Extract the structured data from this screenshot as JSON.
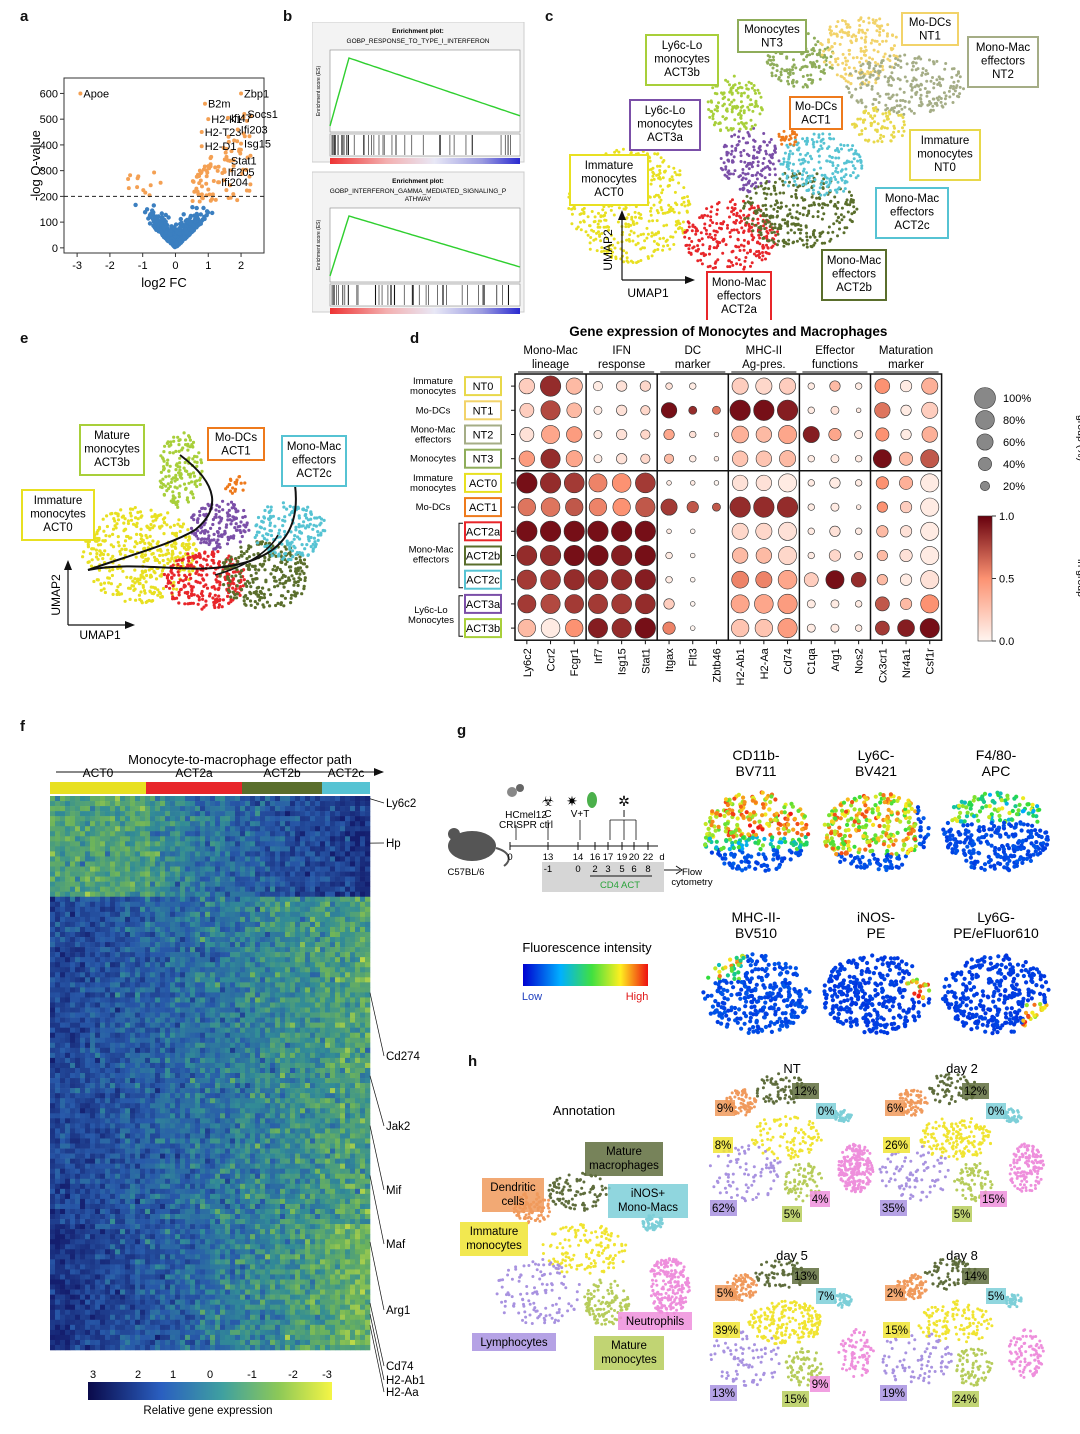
{
  "panels": {
    "a": "a",
    "b": "b",
    "c": "c",
    "d": "d",
    "e": "e",
    "f": "f",
    "g": "g",
    "h": "h"
  },
  "chart_data": [
    {
      "type": "scatter",
      "panel": "a",
      "xlabel": "log2 FC",
      "ylabel": "-log Q-value",
      "xticks": [
        "-3",
        "-2",
        "-1",
        "0",
        "1",
        "2"
      ],
      "yticks": [
        "0",
        "100",
        "200",
        "300",
        "400",
        "500",
        "600"
      ],
      "xlim": [
        -3.4,
        2.7
      ],
      "ylim": [
        -20,
        660
      ],
      "threshold_y": 200,
      "colors": {
        "up": "#f4a053",
        "base": "#3b7fc0"
      },
      "labeled_points": [
        {
          "label": "Apoe",
          "x": -2.9,
          "y": 600
        },
        {
          "label": "B2m",
          "x": 0.9,
          "y": 560
        },
        {
          "label": "Zbp1",
          "x": 2.0,
          "y": 600
        },
        {
          "label": "Socs1",
          "x": 2.1,
          "y": 520
        },
        {
          "label": "H2-K1",
          "x": 1.0,
          "y": 500
        },
        {
          "label": "Ifi47",
          "x": 1.6,
          "y": 505
        },
        {
          "label": "H2-T23",
          "x": 0.8,
          "y": 450
        },
        {
          "label": "Ifi203",
          "x": 1.9,
          "y": 460
        },
        {
          "label": "Isg15",
          "x": 2.0,
          "y": 405
        },
        {
          "label": "H2-D1",
          "x": 0.8,
          "y": 395
        },
        {
          "label": "Stat1",
          "x": 1.6,
          "y": 340
        },
        {
          "label": "Ifi205",
          "x": 1.5,
          "y": 295
        },
        {
          "label": "Ifi204",
          "x": 1.3,
          "y": 255
        }
      ]
    },
    {
      "type": "line",
      "panel": "b",
      "plots": [
        {
          "title": "Enrichment plot:",
          "subtitle": "GOBP_RESPONSE_TO_TYPE_I_INTERFERON"
        },
        {
          "title": "Enrichment plot:",
          "subtitle": "GOBP_INTERFERON_GAMMA_MEDIATED_SIGNALING_P ATHWAY"
        }
      ],
      "color": "#2fcf2f"
    },
    {
      "type": "scatter",
      "panel": "c",
      "xlabel": "UMAP1",
      "ylabel": "UMAP2",
      "clusters": [
        {
          "label": [
            "Immature",
            "monocytes",
            "ACT0"
          ],
          "color": "#e8e021"
        },
        {
          "label": [
            "Mono-Mac",
            "effectors",
            "ACT2a"
          ],
          "color": "#e8262a"
        },
        {
          "label": [
            "Mono-Mac",
            "effectors",
            "ACT2b"
          ],
          "color": "#5a6e2c"
        },
        {
          "label": [
            "Mono-Mac",
            "effectors",
            "ACT2c"
          ],
          "color": "#56c3d3"
        },
        {
          "label": [
            "Ly6c-Lo",
            "monocytes",
            "ACT3a"
          ],
          "color": "#7b4fa8"
        },
        {
          "label": [
            "Ly6c-Lo",
            "monocytes",
            "ACT3b"
          ],
          "color": "#a8cf3a"
        },
        {
          "label": [
            "Mo-DCs",
            "ACT1"
          ],
          "color": "#ee7a1c"
        },
        {
          "label": [
            "Monocytes",
            "NT3"
          ],
          "color": "#8fad5a"
        },
        {
          "label": [
            "Mo-DCs",
            "NT1"
          ],
          "color": "#f2d36a"
        },
        {
          "label": [
            "Mono-Mac",
            "effectors",
            "NT2"
          ],
          "color": "#a5ad86"
        },
        {
          "label": [
            "Immature",
            "monocytes",
            "NT0"
          ],
          "color": "#e8d84a"
        }
      ]
    },
    {
      "type": "scatter",
      "panel": "d",
      "title": "Gene expression of Monocytes and Macrophages",
      "groups": [
        {
          "label": [
            "Mono-Mac",
            "lineage"
          ],
          "genes": [
            "Ly6c2",
            "Ccr2",
            "Fcgr1"
          ]
        },
        {
          "label": [
            "IFN",
            "response"
          ],
          "genes": [
            "Irf7",
            "Isg15",
            "Stat1"
          ]
        },
        {
          "label": [
            "DC",
            "marker"
          ],
          "genes": [
            "Itgax",
            "Flt3",
            "Zbtb46"
          ]
        },
        {
          "label": [
            "MHC-II",
            "Ag-pres."
          ],
          "genes": [
            "H2-Ab1",
            "H2-Aa",
            "Cd74"
          ]
        },
        {
          "label": [
            "Effector",
            "functions"
          ],
          "genes": [
            "C1qa",
            "Arg1",
            "Nos2"
          ]
        },
        {
          "label": [
            "Maturation",
            "marker"
          ],
          "genes": [
            "Cx3cr1",
            "Nr4a1",
            "Csf1r"
          ]
        }
      ],
      "rows": [
        {
          "id": "NT0",
          "desc": [
            "Immature",
            "monocytes"
          ],
          "color": "#e8d84a"
        },
        {
          "id": "NT1",
          "desc": [
            "Mo-DCs"
          ],
          "color": "#f2d36a"
        },
        {
          "id": "NT2",
          "desc": [
            "Mono-Mac",
            "effectors"
          ],
          "color": "#a5ad86"
        },
        {
          "id": "NT3",
          "desc": [
            "Monocytes"
          ],
          "color": "#8fad5a"
        },
        {
          "id": "ACT0",
          "desc": [
            "Immature",
            "monocytes"
          ],
          "color": "#e8e021"
        },
        {
          "id": "ACT1",
          "desc": [
            "Mo-DCs"
          ],
          "color": "#ee7a1c"
        },
        {
          "id": "ACT2a",
          "desc": [],
          "color": "#e8262a"
        },
        {
          "id": "ACT2b",
          "desc": [],
          "color": "#5a6e2c"
        },
        {
          "id": "ACT2c",
          "desc": [],
          "color": "#56c3d3"
        },
        {
          "id": "ACT3a",
          "desc": [],
          "color": "#7b4fa8"
        },
        {
          "id": "ACT3b",
          "desc": [],
          "color": "#a8cf3a"
        }
      ],
      "bracket_labels": [
        {
          "text": [
            "Mono-Mac",
            "effectors"
          ],
          "rows": [
            "ACT2a",
            "ACT2c"
          ]
        },
        {
          "text": [
            "Ly6c-Lo",
            "Monocytes"
          ],
          "rows": [
            "ACT3a",
            "ACT3b"
          ]
        }
      ],
      "fraction": [
        [
          0.55,
          0.95,
          0.6,
          0.2,
          0.25,
          0.25,
          0.1,
          0.1,
          0,
          0.6,
          0.6,
          0.6,
          0.1,
          0.25,
          0.1,
          0.5,
          0.3,
          0.6
        ],
        [
          0.45,
          0.85,
          0.5,
          0.15,
          0.25,
          0.2,
          0.55,
          0.15,
          0.15,
          0.95,
          0.95,
          0.95,
          0.1,
          0.15,
          0.05,
          0.55,
          0.25,
          0.6
        ],
        [
          0.45,
          0.75,
          0.55,
          0.15,
          0.25,
          0.2,
          0.25,
          0.1,
          0.05,
          0.65,
          0.55,
          0.75,
          0.6,
          0.35,
          0.15,
          0.4,
          0.25,
          0.55
        ],
        [
          0.55,
          0.85,
          0.6,
          0.15,
          0.25,
          0.2,
          0.2,
          0.1,
          0.05,
          0.55,
          0.55,
          0.6,
          0.1,
          0.15,
          0.1,
          0.75,
          0.4,
          0.75
        ],
        [
          0.95,
          0.95,
          0.9,
          0.75,
          0.8,
          0.9,
          0.05,
          0.05,
          0.05,
          0.55,
          0.55,
          0.75,
          0.1,
          0.25,
          0.1,
          0.35,
          0.4,
          0.75
        ],
        [
          0.7,
          0.8,
          0.7,
          0.7,
          0.7,
          0.85,
          0.6,
          0.3,
          0.15,
          0.95,
          0.95,
          0.95,
          0.1,
          0.15,
          0.05,
          0.25,
          0.3,
          0.75
        ],
        [
          0.95,
          0.95,
          0.95,
          0.95,
          0.95,
          0.95,
          0.05,
          0.05,
          0,
          0.6,
          0.6,
          0.75,
          0.1,
          0.25,
          0.1,
          0.3,
          0.3,
          0.75
        ],
        [
          0.9,
          0.95,
          0.95,
          0.95,
          0.95,
          0.95,
          0.1,
          0.05,
          0,
          0.55,
          0.55,
          0.75,
          0.1,
          0.3,
          0.15,
          0.25,
          0.35,
          0.75
        ],
        [
          0.85,
          0.9,
          0.95,
          0.9,
          0.95,
          0.95,
          0.1,
          0.05,
          0,
          0.65,
          0.6,
          0.8,
          0.45,
          0.75,
          0.5,
          0.25,
          0.3,
          0.75
        ],
        [
          0.75,
          0.85,
          0.8,
          0.85,
          0.9,
          0.9,
          0.25,
          0.05,
          0,
          0.75,
          0.8,
          0.85,
          0.15,
          0.15,
          0.1,
          0.45,
          0.3,
          0.75
        ],
        [
          0.7,
          0.8,
          0.7,
          0.85,
          0.85,
          0.95,
          0.35,
          0.05,
          0,
          0.7,
          0.7,
          0.85,
          0.15,
          0.15,
          0.1,
          0.45,
          0.65,
          0.85
        ]
      ],
      "expression": [
        [
          0.2,
          0.85,
          0.3,
          0.05,
          0.1,
          0.15,
          0.1,
          0.05,
          0,
          0.2,
          0.15,
          0.2,
          0.05,
          0.3,
          0.05,
          0.5,
          0.05,
          0.35
        ],
        [
          0.2,
          0.75,
          0.3,
          0.05,
          0.1,
          0.15,
          0.95,
          0.85,
          0.6,
          0.95,
          0.95,
          0.9,
          0.05,
          0.1,
          0.05,
          0.6,
          0.05,
          0.2
        ],
        [
          0.1,
          0.4,
          0.45,
          0.05,
          0.1,
          0.15,
          0.4,
          0.1,
          0.05,
          0.35,
          0.3,
          0.4,
          0.9,
          0.4,
          0.05,
          0.5,
          0.05,
          0.35
        ],
        [
          0.45,
          0.85,
          0.4,
          0.05,
          0.1,
          0.15,
          0.3,
          0.05,
          0.05,
          0.25,
          0.25,
          0.3,
          0.05,
          0.05,
          0.05,
          0.95,
          0.3,
          0.7
        ],
        [
          0.95,
          0.85,
          0.8,
          0.55,
          0.5,
          0.8,
          0.05,
          0.05,
          0,
          0.1,
          0.1,
          0.05,
          0.05,
          0.05,
          0.05,
          0.5,
          0.35,
          0.05
        ],
        [
          0.6,
          0.6,
          0.7,
          0.55,
          0.5,
          0.7,
          0.8,
          0.7,
          0.7,
          0.85,
          0.85,
          0.85,
          0.05,
          0.05,
          0.05,
          0.5,
          0.2,
          0.05
        ],
        [
          0.95,
          0.95,
          0.95,
          0.95,
          0.95,
          0.95,
          0.05,
          0,
          0,
          0.15,
          0.15,
          0.1,
          0.05,
          0.1,
          0.05,
          0.3,
          0.1,
          0.05
        ],
        [
          0.85,
          0.85,
          0.95,
          0.95,
          0.9,
          0.95,
          0.05,
          0,
          0,
          0.3,
          0.3,
          0.15,
          0.05,
          0.15,
          0.1,
          0.3,
          0.1,
          0.05
        ],
        [
          0.8,
          0.8,
          0.85,
          0.85,
          0.85,
          0.9,
          0.05,
          0,
          0,
          0.55,
          0.55,
          0.4,
          0.2,
          0.95,
          0.85,
          0.3,
          0.05,
          0.1
        ],
        [
          0.8,
          0.75,
          0.8,
          0.8,
          0.8,
          0.85,
          0.2,
          0,
          0,
          0.4,
          0.4,
          0.45,
          0.05,
          0.05,
          0.05,
          0.7,
          0.3,
          0.5
        ],
        [
          0.3,
          0.05,
          0.5,
          0.9,
          0.85,
          0.95,
          0.55,
          0,
          0,
          0.25,
          0.25,
          0.45,
          0.05,
          0.05,
          0.05,
          0.8,
          0.9,
          0.95
        ]
      ],
      "size_legend": {
        "title": "Fraction of cells in group (%)",
        "labels": [
          "100%",
          "80%",
          "60%",
          "40%",
          "20%"
        ],
        "values": [
          1.0,
          0.8,
          0.6,
          0.4,
          0.2
        ]
      },
      "color_legend": {
        "title": "Mean expression in group",
        "ticks": [
          "1.0",
          "0.5",
          "0.0"
        ],
        "colors": [
          "#fff5f0",
          "#67000d"
        ]
      }
    },
    {
      "type": "scatter",
      "panel": "e",
      "xlabel": "UMAP1",
      "ylabel": "UMAP2",
      "labels": [
        {
          "text": [
            "Mature",
            "monocytes",
            "ACT3b"
          ],
          "color": "#a8cf3a"
        },
        {
          "text": [
            "Mo-DCs",
            "ACT1"
          ],
          "color": "#ee7a1c"
        },
        {
          "text": [
            "Mono-Mac",
            "effectors",
            "ACT2c"
          ],
          "color": "#56c3d3"
        },
        {
          "text": [
            "Immature",
            "monocytes",
            "ACT0"
          ],
          "color": "#e8e021"
        }
      ]
    },
    {
      "type": "heatmap",
      "panel": "f",
      "title": "Monocyte-to-macrophage effector path",
      "columns": [
        "ACT0",
        "ACT2a",
        "ACT2b",
        "ACT2c"
      ],
      "column_colors": [
        "#e8e021",
        "#e8262a",
        "#5a6e2c",
        "#56c3d3"
      ],
      "row_labels": [
        "Ly6c2",
        "Hp",
        "Cd274",
        "Jak2",
        "Mif",
        "Maf",
        "Arg1",
        "Cd74",
        "H2-Ab1",
        "H2-Aa"
      ],
      "colorbar": {
        "ticks": [
          "3",
          "2",
          "1",
          "0",
          "-1",
          "-2",
          "-3"
        ],
        "label": "Relative gene expression"
      }
    },
    {
      "type": "scatter",
      "panel": "g",
      "schematic": {
        "mouse": "C57BL/6",
        "top_labels": [
          "HCmel12 CRISPR ctrl",
          "C",
          "V+T",
          "I"
        ],
        "top_ticks": [
          "0",
          "13",
          "14",
          "16",
          "17",
          "19",
          "20",
          "22",
          "d"
        ],
        "bottom_ticks": [
          "-1",
          "0",
          "2",
          "3",
          "5",
          "6",
          "8"
        ],
        "cd4_label": "CD4 ACT",
        "flow_label": [
          "Flow",
          "cytometry"
        ]
      },
      "markers": [
        {
          "name": [
            "CD11b-",
            "BV711"
          ]
        },
        {
          "name": [
            "Ly6C-",
            "BV421"
          ]
        },
        {
          "name": [
            "F4/80-",
            "APC"
          ]
        },
        {
          "name": [
            "MHC-II-",
            "BV510"
          ]
        },
        {
          "name": [
            "iNOS-",
            "PE"
          ]
        },
        {
          "name": [
            "Ly6G-",
            "PE/eFluor610"
          ]
        }
      ],
      "legend": {
        "title": "Fluorescence intensity",
        "low": "Low",
        "high": "High"
      }
    },
    {
      "type": "scatter",
      "panel": "h",
      "title": "Annotation",
      "populations": [
        {
          "name": [
            "Mature",
            "macrophages"
          ],
          "color": "#5f6d3d"
        },
        {
          "name": [
            "Dendritic",
            "cells"
          ],
          "color": "#f09a5c"
        },
        {
          "name": [
            "iNOS+",
            "Mono-Macs"
          ],
          "color": "#7dcfd8"
        },
        {
          "name": [
            "Immature",
            "monocytes"
          ],
          "color": "#f0e431"
        },
        {
          "name": [
            "Neutrophils"
          ],
          "color": "#ee8fdc"
        },
        {
          "name": [
            "Mature",
            "monocytes"
          ],
          "color": "#b6cc5a"
        },
        {
          "name": [
            "Lymphocytes"
          ],
          "color": "#a892e0"
        }
      ],
      "timepoints": [
        {
          "name": "NT",
          "dc": "9%",
          "mac": "12%",
          "inos": "0%",
          "imm": "8%",
          "lym": "62%",
          "mat": "5%",
          "neu": "4%"
        },
        {
          "name": "day 2",
          "dc": "6%",
          "mac": "12%",
          "inos": "0%",
          "imm": "26%",
          "lym": "35%",
          "mat": "5%",
          "neu": "15%"
        },
        {
          "name": "day 5",
          "dc": "5%",
          "mac": "13%",
          "inos": "7%",
          "imm": "39%",
          "lym": "13%",
          "mat": "15%",
          "neu": "9%"
        },
        {
          "name": "day 8",
          "dc": "2%",
          "mac": "14%",
          "inos": "5%",
          "imm": "15%",
          "lym": "19%",
          "mat": "24%",
          "neu": ""
        }
      ]
    }
  ]
}
